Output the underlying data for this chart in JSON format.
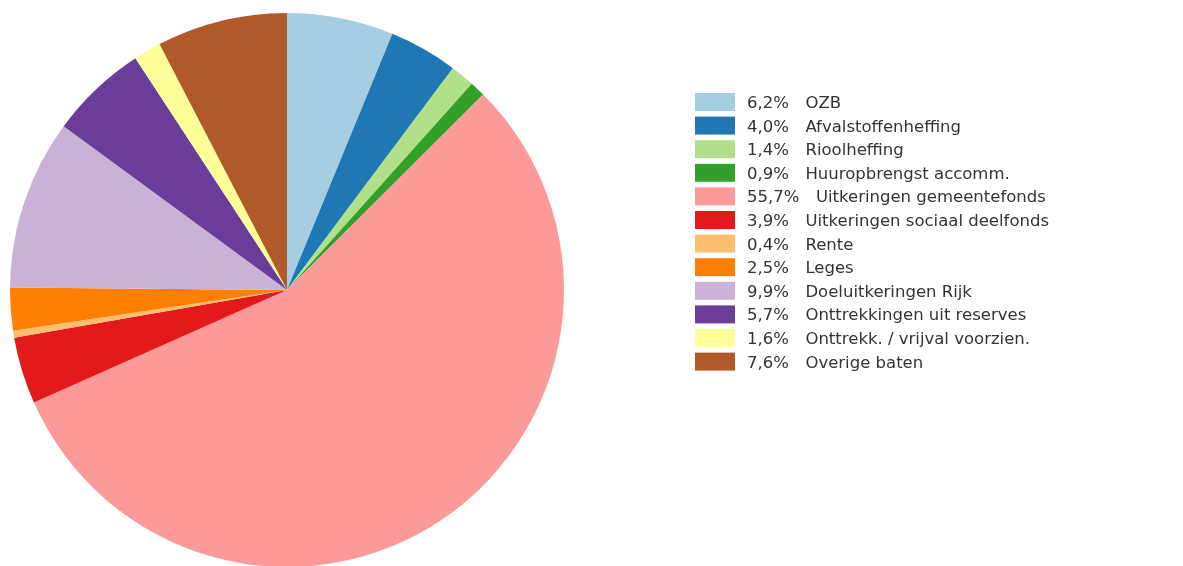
{
  "chart_data": {
    "type": "pie",
    "legend": "right",
    "categories": [
      "OZB",
      "Afvalstoffenheffing",
      "Rioolheffing",
      "Huuropbrengst accomm.",
      "Uitkeringen gemeentefonds",
      "Uitkeringen sociaal deelfonds",
      "Rente",
      "Leges",
      "Doeluitkeringen Rijk",
      "Onttrekkingen uit reserves",
      "Onttrekk. / vrijval voorzien.",
      "Overige baten"
    ],
    "values": [
      6.2,
      4.0,
      1.4,
      0.9,
      55.7,
      3.9,
      0.4,
      2.5,
      9.9,
      5.7,
      1.6,
      7.6
    ],
    "value_labels": [
      "6,2%",
      "4,0%",
      "1,4%",
      "0,9%",
      "55,7%",
      "3,9%",
      "0,4%",
      "2,5%",
      "9,9%",
      "5,7%",
      "1,6%",
      "7,6%"
    ],
    "colors": [
      "#a6cee3",
      "#1f78b4",
      "#b2df8a",
      "#33a02c",
      "#fb9a99",
      "#e31a1c",
      "#fdbf6f",
      "#ff7f00",
      "#cab2d6",
      "#6a3d9a",
      "#ffff99",
      "#b15928"
    ]
  }
}
